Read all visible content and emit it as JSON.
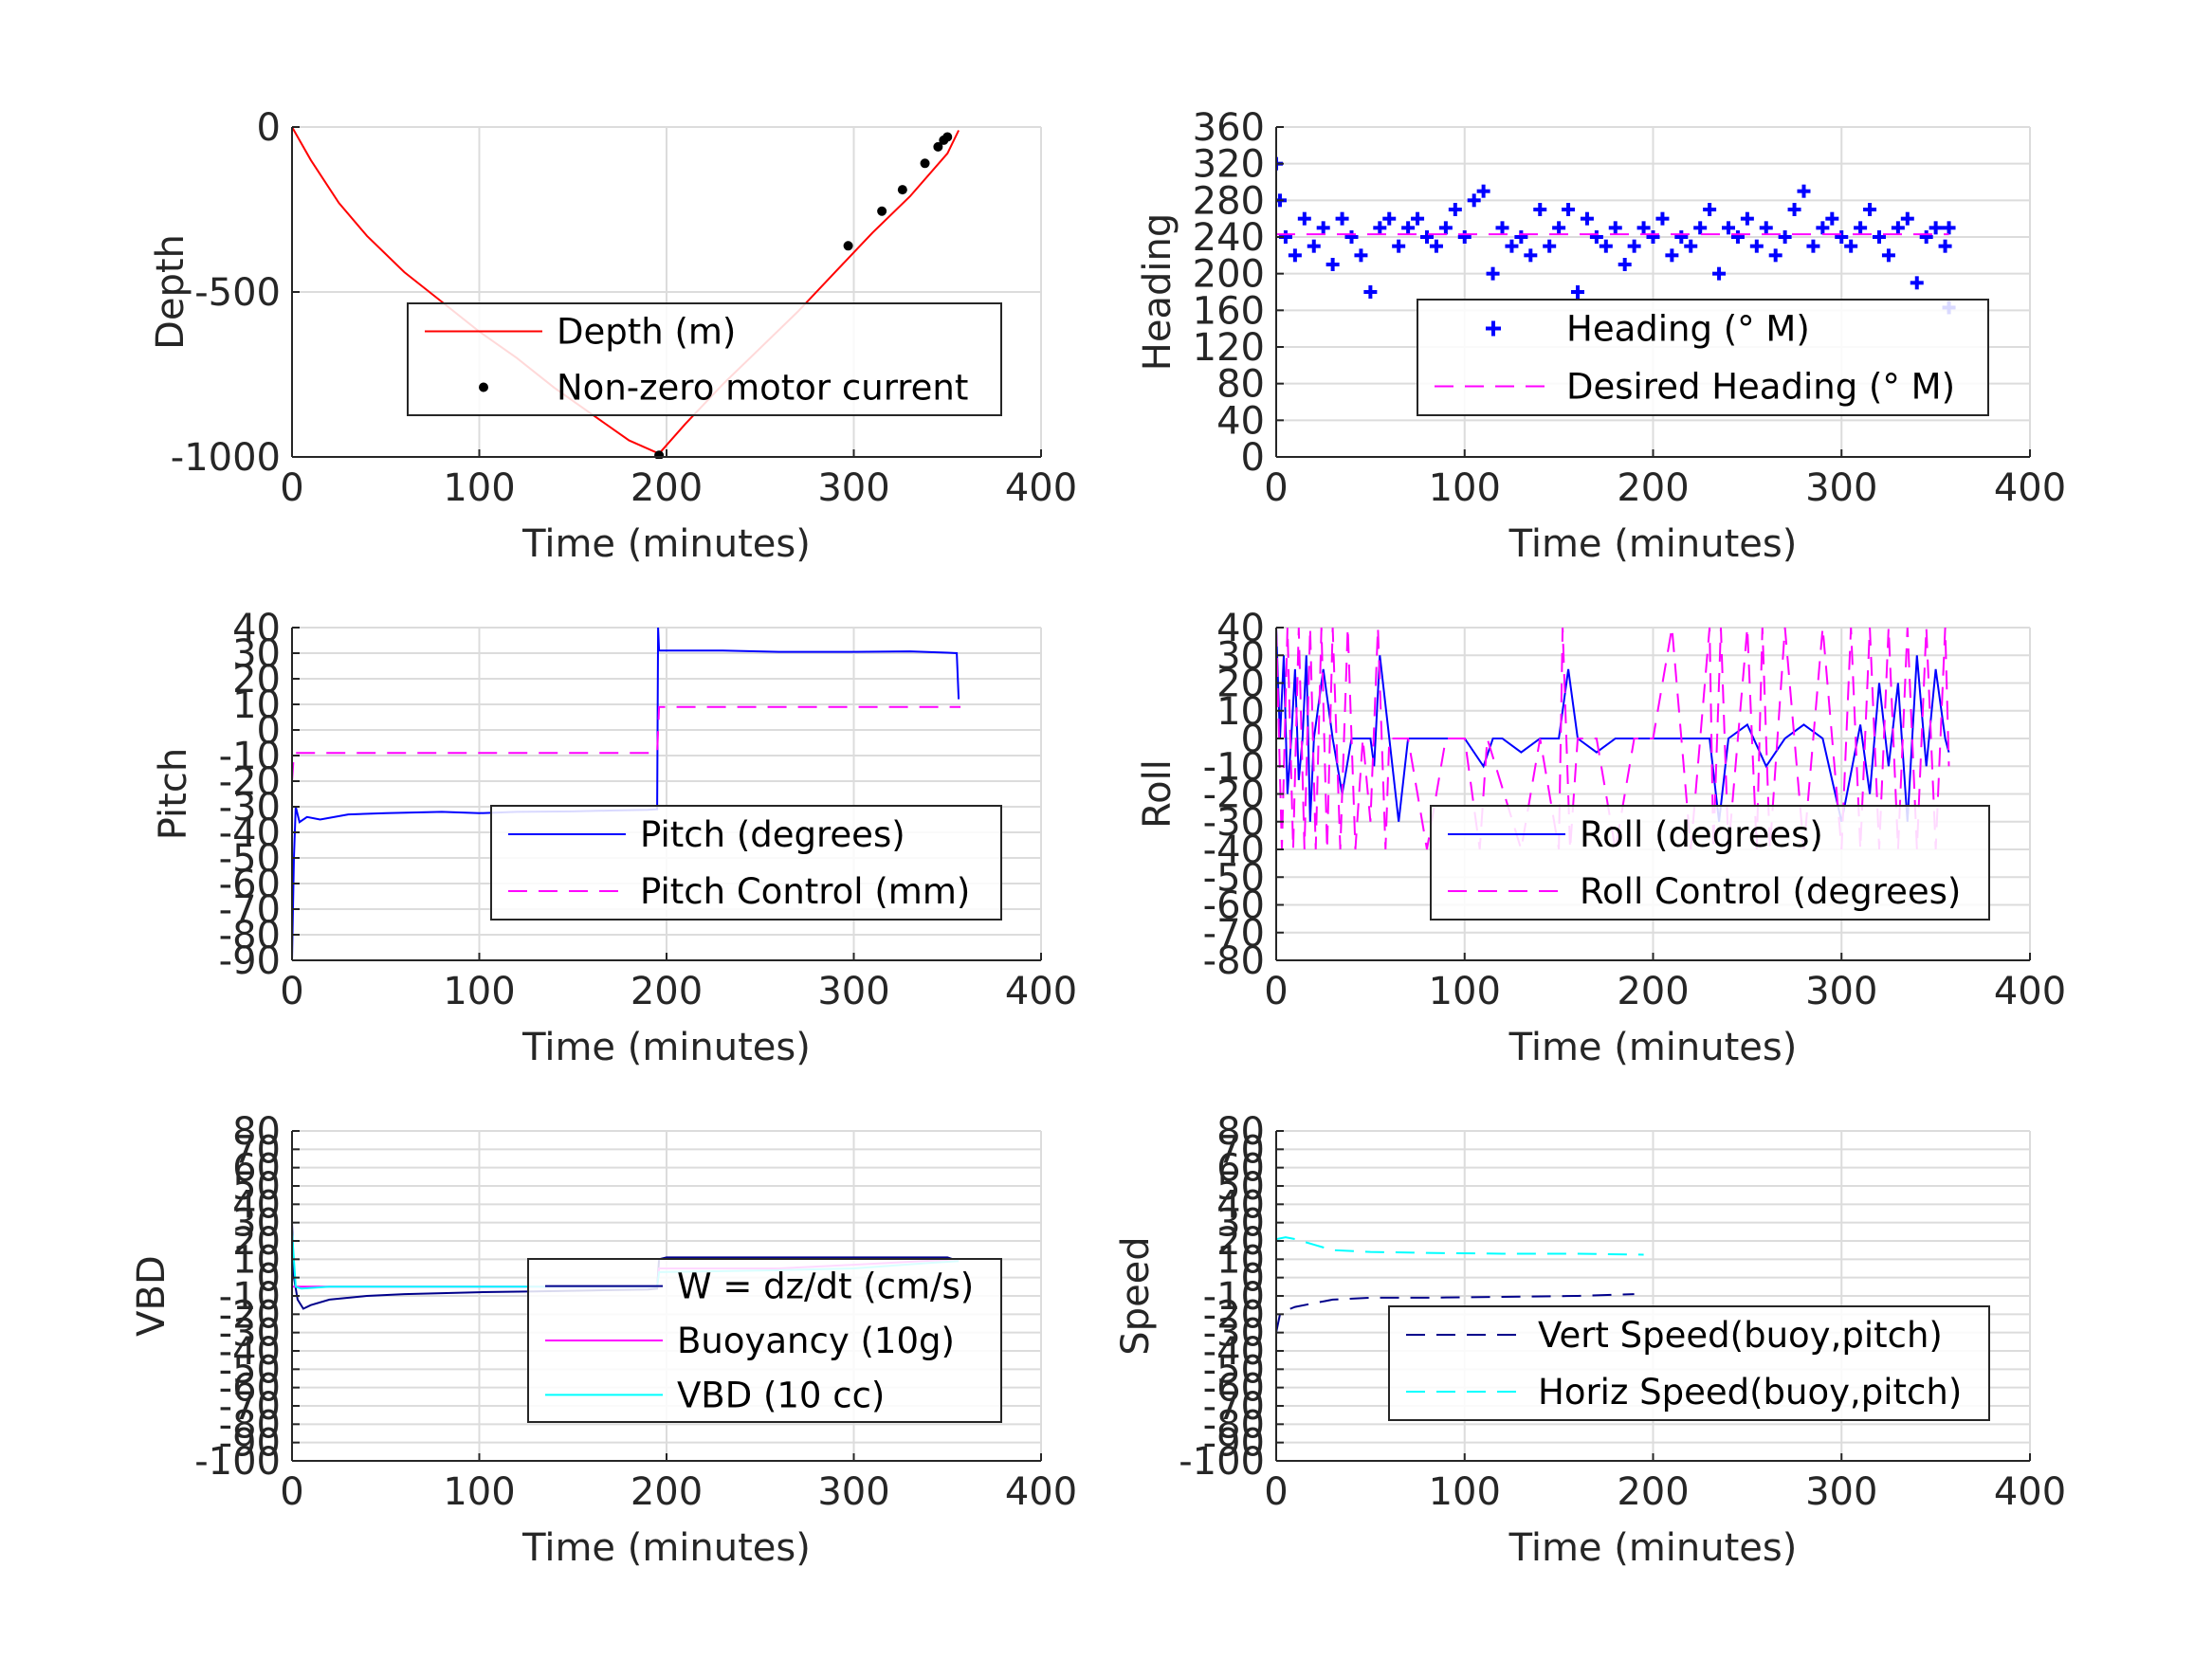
{
  "chart_data": [
    {
      "type": "line",
      "id": "depth",
      "ylabel": "Depth",
      "xlabel": "Time (minutes)",
      "xlim": [
        0,
        400
      ],
      "ylim": [
        -1000,
        0
      ],
      "xticks": [
        0,
        100,
        200,
        300,
        400
      ],
      "yticks": [
        -1000,
        -500,
        0
      ],
      "grid": true,
      "legend": "center-right",
      "series": [
        {
          "name": "Depth (m)",
          "color": "#ff0000",
          "style": "solid",
          "x": [
            0,
            10,
            25,
            40,
            60,
            80,
            100,
            120,
            140,
            160,
            180,
            196,
            210,
            230,
            250,
            270,
            290,
            310,
            330,
            350,
            356
          ],
          "y": [
            0,
            -100,
            -230,
            -330,
            -440,
            -530,
            -620,
            -700,
            -790,
            -870,
            -950,
            -990,
            -900,
            -780,
            -670,
            -560,
            -440,
            -320,
            -210,
            -80,
            -10
          ]
        },
        {
          "name": "Non-zero motor current",
          "color": "#000000",
          "style": "dots",
          "x": [
            196,
            297,
            315,
            326,
            338,
            345,
            348,
            350
          ],
          "y": [
            -995,
            -360,
            -255,
            -190,
            -110,
            -60,
            -40,
            -30
          ]
        }
      ]
    },
    {
      "type": "line",
      "id": "heading",
      "ylabel": "Heading",
      "xlabel": "Time (minutes)",
      "xlim": [
        0,
        400
      ],
      "ylim": [
        0,
        360
      ],
      "xticks": [
        0,
        100,
        200,
        300,
        400
      ],
      "yticks": [
        0,
        40,
        80,
        120,
        160,
        200,
        240,
        280,
        320,
        360
      ],
      "grid": true,
      "legend": "lower-right",
      "series": [
        {
          "name": "Heading (° M)",
          "color": "#0000ff",
          "style": "plus",
          "x": [
            0,
            2,
            5,
            10,
            15,
            20,
            25,
            30,
            35,
            40,
            45,
            50,
            55,
            60,
            65,
            70,
            75,
            80,
            85,
            90,
            95,
            100,
            105,
            110,
            115,
            120,
            125,
            130,
            135,
            140,
            145,
            150,
            155,
            160,
            165,
            170,
            175,
            180,
            185,
            190,
            195,
            200,
            205,
            210,
            215,
            220,
            225,
            230,
            235,
            240,
            245,
            250,
            255,
            260,
            265,
            270,
            275,
            280,
            285,
            290,
            295,
            300,
            305,
            310,
            315,
            320,
            325,
            330,
            335,
            340,
            345,
            350,
            355,
            357
          ],
          "y": [
            320,
            280,
            240,
            220,
            260,
            230,
            250,
            210,
            260,
            240,
            220,
            180,
            250,
            260,
            230,
            250,
            260,
            240,
            230,
            250,
            270,
            240,
            280,
            290,
            200,
            250,
            230,
            240,
            220,
            270,
            230,
            250,
            270,
            180,
            260,
            240,
            230,
            250,
            210,
            230,
            250,
            240,
            260,
            220,
            240,
            230,
            250,
            270,
            200,
            250,
            240,
            260,
            230,
            250,
            220,
            240,
            270,
            290,
            230,
            250,
            260,
            240,
            230,
            250,
            270,
            240,
            220,
            250,
            260,
            190,
            240,
            250,
            230,
            250
          ]
        },
        {
          "name": "Desired Heading (° M)",
          "color": "#ff00ff",
          "style": "dashed",
          "x": [
            0,
            357
          ],
          "y": [
            243,
            243
          ]
        },
        {
          "name": "",
          "color": "#0000ff",
          "style": "plus",
          "x": [
            357
          ],
          "y": [
            163
          ]
        }
      ]
    },
    {
      "type": "line",
      "id": "pitch",
      "ylabel": "Pitch",
      "xlabel": "Time (minutes)",
      "xlim": [
        0,
        400
      ],
      "ylim": [
        -90,
        40
      ],
      "xticks": [
        0,
        100,
        200,
        300,
        400
      ],
      "yticks": [
        -90,
        -80,
        -70,
        -60,
        -50,
        -40,
        -30,
        -20,
        -10,
        0,
        10,
        20,
        30,
        40
      ],
      "grid": true,
      "legend": "lower-right",
      "series": [
        {
          "name": "Pitch (degrees)",
          "color": "#0000ff",
          "style": "solid",
          "x": [
            0,
            1,
            2,
            4,
            8,
            15,
            30,
            50,
            80,
            100,
            120,
            150,
            170,
            190,
            195,
            195.5,
            196,
            200,
            230,
            260,
            300,
            330,
            350,
            355,
            356
          ],
          "y": [
            -90,
            -50,
            -30,
            -36,
            -34,
            -35,
            -33,
            -32.5,
            -32,
            -32.5,
            -32,
            -31.8,
            -31.5,
            -31.2,
            -31,
            40,
            31,
            31,
            31,
            30.5,
            30.5,
            30.7,
            30.2,
            30,
            12
          ]
        },
        {
          "name": "Pitch Control (mm)",
          "color": "#ff00ff",
          "style": "dashed",
          "x": [
            0,
            1,
            195,
            196,
            357
          ],
          "y": [
            -20,
            -9,
            -9,
            9,
            9
          ]
        }
      ]
    },
    {
      "type": "line",
      "id": "roll",
      "ylabel": "Roll",
      "xlabel": "Time (minutes)",
      "xlim": [
        0,
        400
      ],
      "ylim": [
        -80,
        40
      ],
      "xticks": [
        0,
        100,
        200,
        300,
        400
      ],
      "yticks": [
        -80,
        -70,
        -60,
        -50,
        -40,
        -30,
        -20,
        -10,
        0,
        10,
        20,
        30,
        40
      ],
      "grid": true,
      "legend": "lower-right",
      "series": [
        {
          "name": "Roll (degrees)",
          "color": "#0000ff",
          "style": "solid",
          "x": [
            0,
            2,
            4,
            6,
            8,
            10,
            12,
            14,
            16,
            18,
            20,
            25,
            30,
            35,
            40,
            45,
            50,
            52,
            55,
            60,
            65,
            70,
            75,
            80,
            85,
            90,
            95,
            100,
            110,
            115,
            120,
            130,
            140,
            150,
            155,
            160,
            170,
            180,
            190,
            200,
            210,
            220,
            230,
            235,
            240,
            250,
            260,
            270,
            280,
            290,
            300,
            310,
            315,
            320,
            325,
            330,
            335,
            340,
            345,
            350,
            355,
            357
          ],
          "y": [
            40,
            0,
            30,
            -20,
            0,
            25,
            -15,
            0,
            30,
            -30,
            0,
            25,
            0,
            -20,
            0,
            0,
            0,
            -10,
            30,
            0,
            -30,
            0,
            0,
            0,
            0,
            0,
            0,
            0,
            -10,
            0,
            0,
            -5,
            0,
            0,
            25,
            0,
            -5,
            0,
            0,
            0,
            0,
            0,
            0,
            -30,
            0,
            5,
            -10,
            0,
            5,
            0,
            -30,
            5,
            -20,
            20,
            -10,
            20,
            -30,
            30,
            -10,
            25,
            0,
            -5
          ]
        },
        {
          "name": "Roll Control (degrees)",
          "color": "#ff00ff",
          "style": "dashed",
          "x": [
            0,
            3,
            6,
            9,
            12,
            15,
            18,
            21,
            24,
            27,
            30,
            34,
            38,
            42,
            46,
            50,
            54,
            58,
            60,
            70,
            80,
            90,
            100,
            108,
            112,
            130,
            140,
            150,
            152,
            156,
            160,
            170,
            180,
            190,
            200,
            210,
            220,
            230,
            232,
            236,
            240,
            250,
            255,
            258,
            262,
            270,
            280,
            290,
            300,
            305,
            310,
            315,
            320,
            325,
            330,
            335,
            340,
            345,
            350,
            355,
            357
          ],
          "y": [
            40,
            -40,
            40,
            -40,
            40,
            -40,
            40,
            -40,
            40,
            -40,
            40,
            -40,
            40,
            -40,
            0,
            -30,
            40,
            -40,
            0,
            0,
            -40,
            0,
            0,
            -40,
            0,
            -40,
            0,
            -40,
            40,
            -40,
            0,
            0,
            -40,
            0,
            0,
            40,
            -40,
            40,
            -40,
            40,
            -40,
            40,
            -40,
            40,
            -40,
            40,
            -40,
            40,
            -40,
            40,
            -40,
            40,
            -40,
            40,
            -40,
            40,
            -40,
            40,
            -40,
            40,
            -10
          ]
        }
      ]
    },
    {
      "type": "line",
      "id": "vbd",
      "ylabel": "VBD",
      "xlabel": "Time (minutes)",
      "xlim": [
        0,
        400
      ],
      "ylim": [
        -100,
        80
      ],
      "xticks": [
        0,
        100,
        200,
        300,
        400
      ],
      "yticks": [
        -100,
        -90,
        -80,
        -70,
        -60,
        -50,
        -40,
        -30,
        -20,
        -10,
        0,
        10,
        20,
        30,
        40,
        50,
        60,
        70,
        80
      ],
      "grid": true,
      "legend": "lower-right",
      "series": [
        {
          "name": "W = dz/dt (cm/s)",
          "color": "#00008b",
          "style": "solid",
          "x": [
            0,
            1,
            3,
            6,
            10,
            20,
            40,
            60,
            80,
            100,
            130,
            160,
            190,
            195,
            196,
            200,
            230,
            260,
            300,
            330,
            350,
            356
          ],
          "y": [
            30,
            0,
            -12,
            -17,
            -15,
            -12,
            -10,
            -9,
            -8.5,
            -8,
            -7.5,
            -7,
            -6.5,
            -6,
            10,
            11,
            11,
            11,
            11,
            11,
            11,
            9
          ]
        },
        {
          "name": "Buoyancy (10g)",
          "color": "#ff00ff",
          "style": "solid",
          "x": [
            0,
            5,
            20,
            60,
            120,
            195,
            196,
            260,
            300,
            356
          ],
          "y": [
            -5,
            -5,
            -5,
            -5,
            -5,
            -5,
            5,
            5,
            7,
            10
          ]
        },
        {
          "name": "VBD (10 cc)",
          "color": "#00ffff",
          "style": "solid",
          "x": [
            0,
            2,
            5,
            20,
            60,
            120,
            195,
            196,
            260,
            300,
            340,
            356
          ],
          "y": [
            25,
            -5,
            -6,
            -5,
            -5,
            -5,
            -5,
            3,
            4,
            5,
            8,
            9
          ]
        }
      ]
    },
    {
      "type": "line",
      "id": "speed",
      "ylabel": "Speed",
      "xlabel": "Time (minutes)",
      "xlim": [
        0,
        400
      ],
      "ylim": [
        -100,
        80
      ],
      "xticks": [
        0,
        100,
        200,
        300,
        400
      ],
      "yticks": [
        -100,
        -90,
        -80,
        -70,
        -60,
        -50,
        -40,
        -30,
        -20,
        -10,
        0,
        10,
        20,
        30,
        40,
        50,
        60,
        70,
        80
      ],
      "grid": true,
      "legend": "lower-right",
      "series": [
        {
          "name": "Vert Speed(buoy,pitch)",
          "color": "#00008b",
          "style": "dashed",
          "x": [
            0,
            2,
            5,
            10,
            20,
            30,
            50,
            80,
            120,
            160,
            190
          ],
          "y": [
            -30,
            -20,
            -18,
            -16,
            -14,
            -12,
            -11,
            -11,
            -10.5,
            -10,
            -9
          ]
        },
        {
          "name": "Horiz Speed(buoy,pitch)",
          "color": "#00ffff",
          "style": "dashed",
          "x": [
            0,
            5,
            10,
            20,
            30,
            50,
            80,
            120,
            160,
            195
          ],
          "y": [
            21,
            22,
            21,
            18,
            15,
            14,
            13.5,
            13,
            13,
            12.5
          ]
        }
      ]
    }
  ]
}
